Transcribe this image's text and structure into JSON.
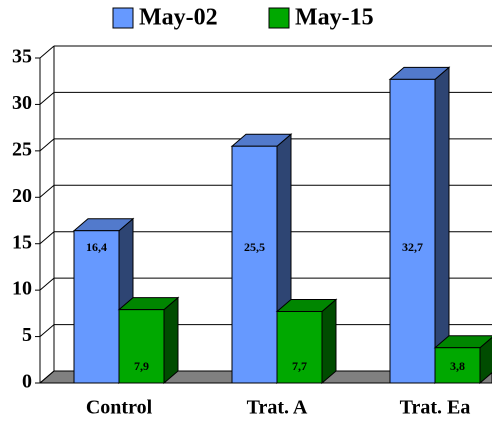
{
  "chart_data": {
    "type": "bar3d",
    "categories": [
      "Control",
      "Trat. A",
      "Trat. Ea"
    ],
    "series": [
      {
        "name": "May-02",
        "color": "#6699ff",
        "values": [
          16.4,
          25.5,
          32.7
        ],
        "value_labels": [
          "16,4",
          "25,5",
          "32,7"
        ]
      },
      {
        "name": "May-15",
        "color": "#00a800",
        "values": [
          7.9,
          7.7,
          3.8
        ],
        "value_labels": [
          "7,9",
          "7,7",
          "3,8"
        ]
      }
    ],
    "ylim": [
      0,
      35
    ],
    "yticks": [
      0,
      5,
      10,
      15,
      20,
      25,
      30,
      35
    ],
    "grid": true,
    "legend": "top"
  }
}
